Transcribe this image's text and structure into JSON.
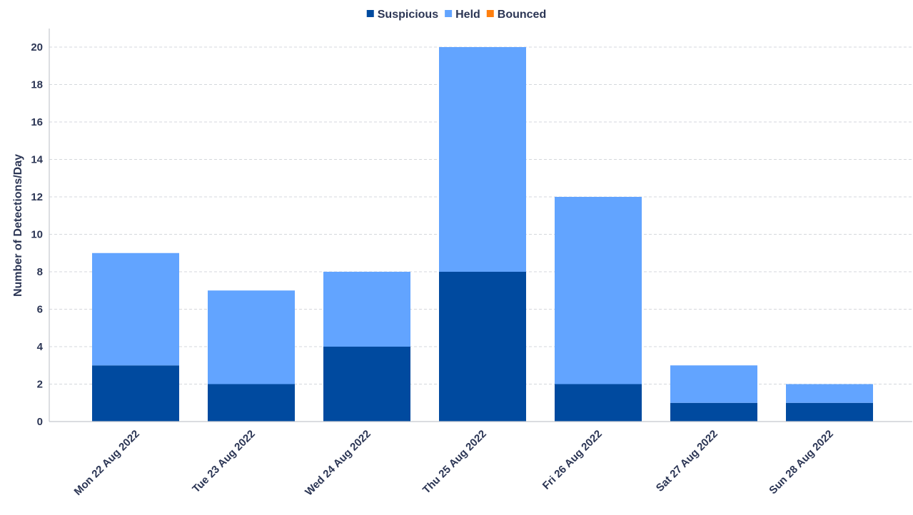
{
  "chart_data": {
    "type": "bar",
    "stacked": true,
    "categories": [
      "Mon 22 Aug 2022",
      "Tue 23 Aug 2022",
      "Wed 24 Aug 2022",
      "Thu 25 Aug 2022",
      "Fri 26 Aug 2022",
      "Sat 27 Aug 2022",
      "Sun 28 Aug 2022"
    ],
    "series": [
      {
        "name": "Suspicious",
        "color": "#004a9f",
        "values": [
          3,
          2,
          4,
          8,
          2,
          1,
          1
        ]
      },
      {
        "name": "Held",
        "color": "#62a4ff",
        "values": [
          6,
          5,
          4,
          12,
          10,
          2,
          1
        ]
      },
      {
        "name": "Bounced",
        "color": "#ff7f0e",
        "values": [
          0,
          0,
          0,
          0,
          0,
          0,
          0
        ]
      }
    ],
    "ylabel": "Number of Detections/Day",
    "xlabel": "",
    "ylim": [
      0,
      21
    ],
    "yticks": [
      0,
      2,
      4,
      6,
      8,
      10,
      12,
      14,
      16,
      18,
      20
    ],
    "grid": true,
    "legend_position": "top-center"
  }
}
